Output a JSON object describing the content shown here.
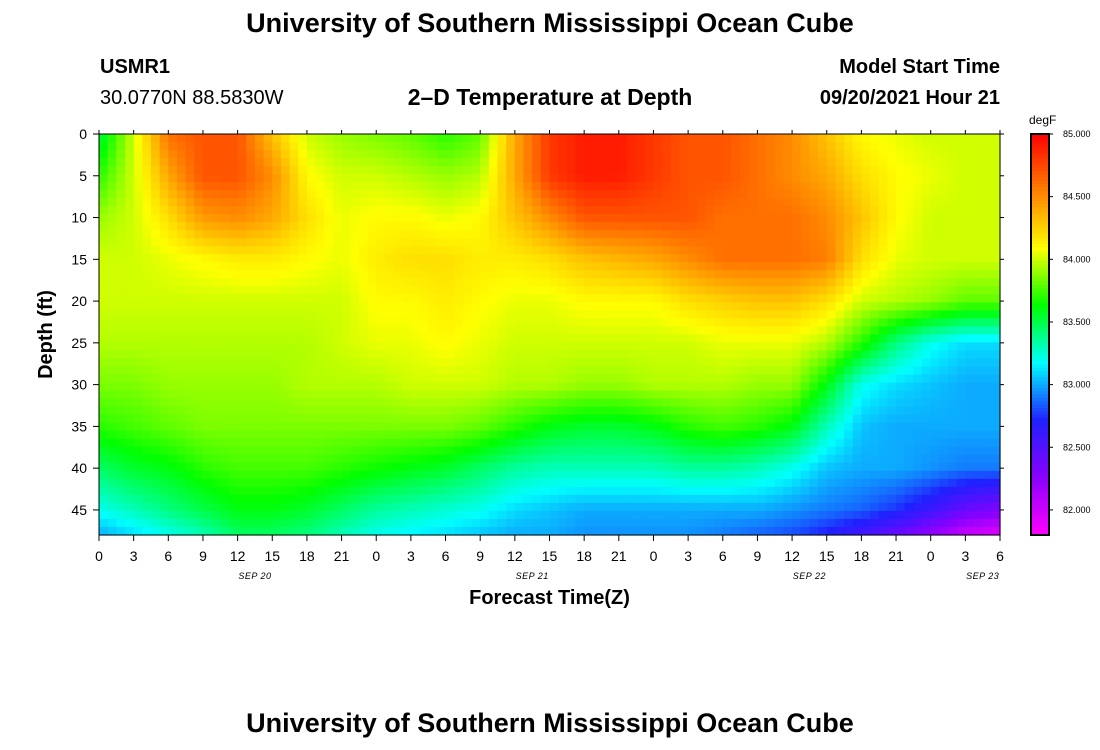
{
  "page": {
    "title_top": "University of Southern Mississippi Ocean Cube",
    "title_bottom": "University of Southern Mississippi Ocean Cube",
    "station_id": "USMR1",
    "station_coords": "30.0770N  88.5830W",
    "plot_title": "2–D Temperature at Depth",
    "model_start_label": "Model Start Time",
    "model_start_value": "09/20/2021 Hour 21"
  },
  "chart_data": {
    "type": "heatmap",
    "title": "2–D Temperature at Depth",
    "xlabel": "Forecast Time(Z)",
    "ylabel": "Depth (ft)",
    "x_ticks": [
      "0",
      "3",
      "6",
      "9",
      "12",
      "15",
      "18",
      "21",
      "0",
      "3",
      "6",
      "9",
      "12",
      "15",
      "18",
      "21",
      "0",
      "3",
      "6",
      "9",
      "12",
      "15",
      "18",
      "21",
      "0",
      "3",
      "6"
    ],
    "x_date_labels": [
      {
        "label": "SEP 20",
        "tick_index": 4.5
      },
      {
        "label": "SEP 21",
        "tick_index": 12.5
      },
      {
        "label": "SEP 22",
        "tick_index": 20.5
      },
      {
        "label": "SEP 23",
        "tick_index": 25.5
      }
    ],
    "y_ticks": [
      0,
      5,
      10,
      15,
      20,
      25,
      30,
      35,
      40,
      45
    ],
    "ylim": [
      0,
      48
    ],
    "y_inverted": true,
    "colorbar": {
      "unit": "degF",
      "range": [
        81.8,
        85.0
      ],
      "tick_values": [
        82.0,
        82.5,
        83.0,
        83.5,
        84.0,
        84.5,
        85.0
      ],
      "tick_labels": [
        "82.000",
        "82.500",
        "83.000",
        "83.500",
        "84.000",
        "84.500",
        "85.000"
      ],
      "colormap": [
        "#ff00ff",
        "#8a00ff",
        "#2020ff",
        "#00ffff",
        "#00ff00",
        "#ffff00",
        "#ff8000",
        "#ff0000"
      ]
    },
    "depths": [
      0,
      5,
      10,
      15,
      20,
      25,
      30,
      35,
      40,
      45,
      48
    ],
    "times_hours": [
      0,
      3,
      6,
      9,
      12,
      15,
      18,
      21,
      24,
      27,
      30,
      33,
      36,
      39,
      42,
      45,
      48,
      51,
      54,
      57,
      60,
      63,
      66,
      69,
      72,
      75,
      78
    ],
    "values": [
      [
        83.5,
        84.0,
        84.6,
        84.7,
        84.7,
        84.3,
        84.0,
        83.9,
        83.85,
        83.8,
        83.7,
        83.8,
        84.4,
        84.8,
        84.9,
        84.9,
        84.8,
        84.7,
        84.7,
        84.6,
        84.5,
        84.3,
        84.1,
        84.05,
        84.0,
        84.0,
        84.0
      ],
      [
        83.7,
        84.0,
        84.4,
        84.7,
        84.7,
        84.5,
        84.1,
        84.0,
        84.0,
        83.95,
        83.9,
        83.95,
        84.4,
        84.8,
        84.9,
        84.9,
        84.8,
        84.7,
        84.7,
        84.6,
        84.5,
        84.4,
        84.2,
        84.1,
        84.05,
        84.0,
        84.0
      ],
      [
        83.9,
        84.0,
        84.2,
        84.45,
        84.5,
        84.4,
        84.2,
        84.05,
        84.1,
        84.1,
        84.05,
        84.1,
        84.3,
        84.5,
        84.7,
        84.7,
        84.7,
        84.7,
        84.6,
        84.6,
        84.6,
        84.5,
        84.3,
        84.1,
        84.0,
        84.0,
        84.0
      ],
      [
        84.0,
        84.0,
        84.05,
        84.1,
        84.15,
        84.15,
        84.1,
        84.05,
        84.15,
        84.2,
        84.2,
        84.15,
        84.15,
        84.2,
        84.3,
        84.35,
        84.4,
        84.5,
        84.6,
        84.6,
        84.6,
        84.55,
        84.2,
        84.05,
        84.0,
        84.0,
        84.0
      ],
      [
        84.0,
        84.0,
        84.0,
        84.0,
        84.0,
        84.0,
        84.0,
        84.0,
        84.1,
        84.1,
        84.15,
        84.1,
        84.05,
        84.05,
        84.1,
        84.1,
        84.1,
        84.2,
        84.25,
        84.3,
        84.3,
        84.2,
        84.0,
        83.95,
        83.9,
        83.8,
        83.8
      ],
      [
        83.95,
        83.95,
        83.95,
        83.95,
        83.95,
        83.95,
        83.95,
        84.0,
        84.05,
        84.05,
        84.1,
        84.05,
        84.0,
        84.0,
        84.0,
        84.0,
        84.0,
        84.0,
        84.05,
        84.05,
        84.05,
        83.95,
        83.7,
        83.4,
        83.2,
        83.1,
        83.1
      ],
      [
        83.85,
        83.85,
        83.9,
        83.9,
        83.9,
        83.9,
        83.95,
        83.95,
        83.95,
        84.0,
        84.0,
        84.0,
        83.95,
        83.95,
        83.9,
        83.9,
        83.95,
        83.95,
        83.95,
        83.9,
        83.9,
        83.6,
        83.2,
        83.1,
        83.05,
        83.0,
        83.0
      ],
      [
        83.7,
        83.75,
        83.8,
        83.85,
        83.85,
        83.85,
        83.85,
        83.85,
        83.85,
        83.85,
        83.85,
        83.8,
        83.7,
        83.6,
        83.55,
        83.55,
        83.6,
        83.7,
        83.75,
        83.7,
        83.6,
        83.3,
        83.05,
        83.0,
        83.0,
        83.0,
        83.0
      ],
      [
        83.45,
        83.55,
        83.6,
        83.7,
        83.75,
        83.75,
        83.75,
        83.7,
        83.65,
        83.6,
        83.55,
        83.45,
        83.35,
        83.3,
        83.3,
        83.3,
        83.3,
        83.35,
        83.35,
        83.3,
        83.2,
        83.05,
        83.0,
        83.0,
        82.95,
        82.9,
        82.9
      ],
      [
        83.2,
        83.3,
        83.4,
        83.5,
        83.6,
        83.6,
        83.55,
        83.45,
        83.35,
        83.3,
        83.25,
        83.2,
        83.1,
        83.05,
        83.0,
        83.0,
        83.0,
        83.0,
        83.0,
        83.0,
        82.95,
        82.9,
        82.85,
        82.75,
        82.6,
        82.4,
        82.3
      ],
      [
        83.0,
        83.1,
        83.2,
        83.3,
        83.45,
        83.45,
        83.4,
        83.3,
        83.2,
        83.15,
        83.1,
        83.05,
        83.0,
        83.0,
        82.95,
        82.95,
        82.95,
        82.95,
        82.9,
        82.85,
        82.8,
        82.7,
        82.55,
        82.4,
        82.2,
        82.0,
        81.9
      ]
    ]
  }
}
